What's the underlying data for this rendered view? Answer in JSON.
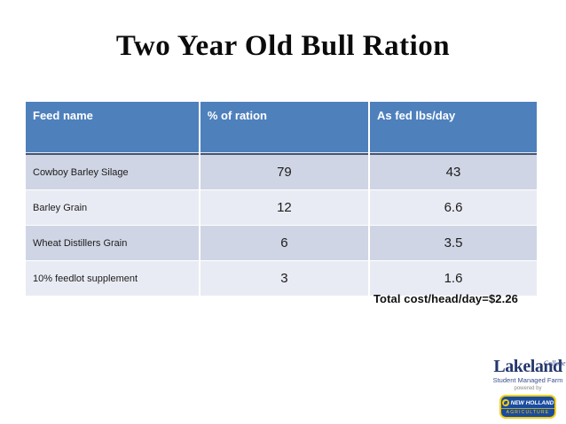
{
  "slide": {
    "title": "Two Year Old Bull Ration",
    "total_cost_note": "Total cost/head/day=$2.26"
  },
  "table": {
    "headers": [
      "Feed name",
      "% of ration",
      "As fed lbs/day"
    ],
    "rows": [
      {
        "feed": "Cowboy Barley Silage",
        "pct": "79",
        "lbs": "43"
      },
      {
        "feed": "Barley Grain",
        "pct": "12",
        "lbs": "6.6"
      },
      {
        "feed": "Wheat Distillers Grain",
        "pct": "6",
        "lbs": "3.5"
      },
      {
        "feed": "10% feedlot supplement",
        "pct": "3",
        "lbs": "1.6"
      }
    ]
  },
  "chart_data": {
    "type": "table",
    "title": "Two Year Old Bull Ration",
    "columns": [
      "Feed name",
      "% of ration",
      "As fed lbs/day"
    ],
    "rows": [
      [
        "Cowboy Barley Silage",
        79,
        43
      ],
      [
        "Barley Grain",
        12,
        6.6
      ],
      [
        "Wheat Distillers Grain",
        6,
        3.5
      ],
      [
        "10% feedlot supplement",
        3,
        1.6
      ]
    ],
    "annotation": "Total cost/head/day=$2.26"
  },
  "logo": {
    "name": "Lakeland",
    "college": "College",
    "subtitle": "Student Managed Farm",
    "powered_by": "powered by",
    "brand": "NEW HOLLAND",
    "brand_sub": "AGRICULTURE"
  },
  "colors": {
    "header_bg": "#4E80BC",
    "row_odd": "#CFD5E4",
    "row_even": "#E9EBF4",
    "header_border": "#46536F",
    "lakeland_navy": "#24376E",
    "new_holland_blue": "#1A4C9E",
    "new_holland_yellow": "#F5CE0F"
  }
}
